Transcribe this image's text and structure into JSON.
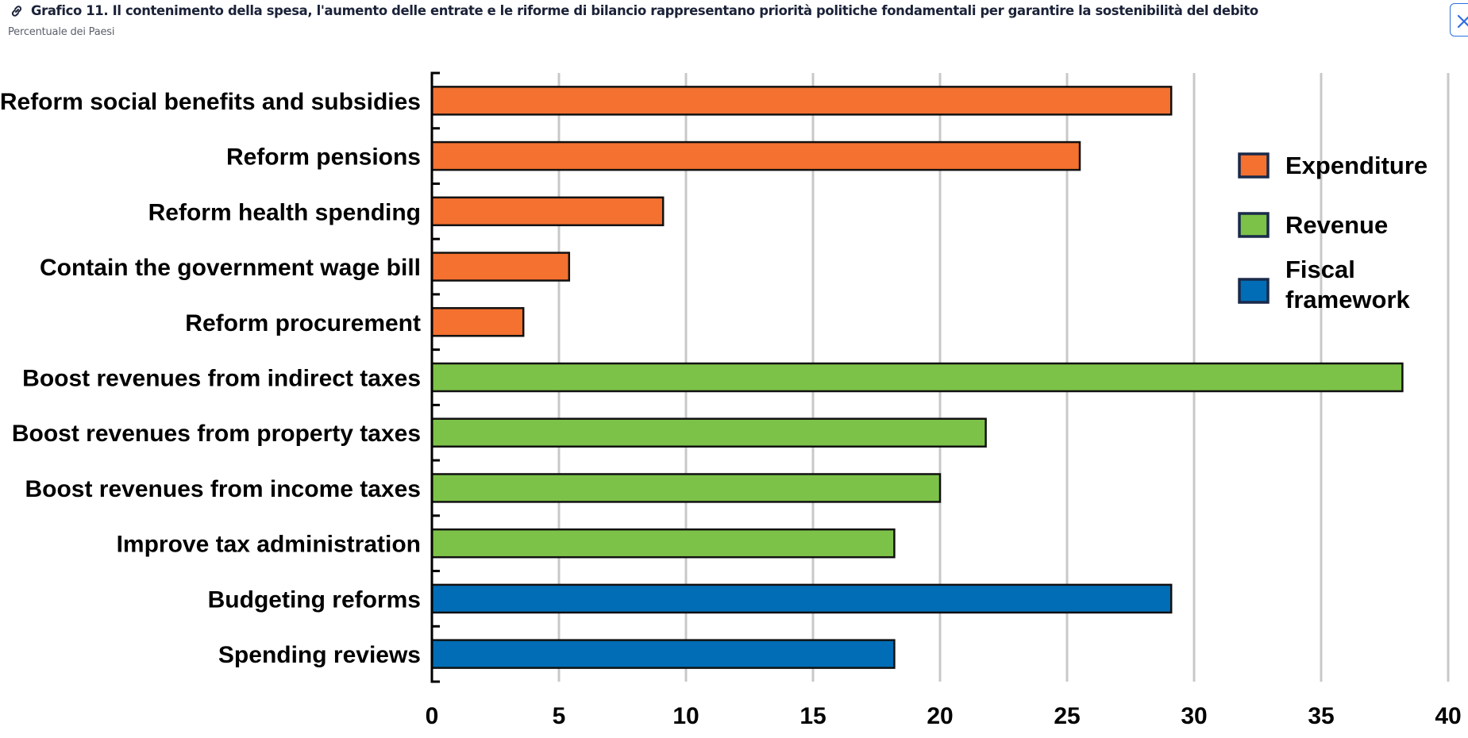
{
  "header": {
    "title": "Grafico 11. Il contenimento della spesa, l'aumento delle entrate e le riforme di bilancio rappresentano priorità politiche fondamentali per garantire la sostenibilità del debito",
    "subtitle": "Percentuale dei Paesi",
    "link_icon": "link-icon",
    "close_icon": "close-icon"
  },
  "colors": {
    "expenditure": "#f47130",
    "revenue": "#7dc248",
    "fiscal_framework": "#006db6",
    "bar_border": "#111111",
    "legend_border": "#1a2a4a",
    "grid": "#c8c8c8",
    "accent": "#2f6ee0"
  },
  "chart_data": {
    "type": "bar",
    "orientation": "horizontal",
    "title": "Grafico 11. Il contenimento della spesa, l'aumento delle entrate e le riforme di bilancio rappresentano priorità politiche fondamentali per garantire la sostenibilità del debito",
    "subtitle": "Percentuale dei Paesi",
    "xlabel": "",
    "ylabel": "",
    "xlim": [
      0,
      40
    ],
    "xticks": [
      0,
      5,
      10,
      15,
      20,
      25,
      30,
      35,
      40
    ],
    "xtick_labels": [
      "0",
      "5",
      "10",
      "15",
      "20",
      "25",
      "30",
      "35",
      "40"
    ],
    "grid": "vertical",
    "legend_position": "top-right",
    "legend": [
      {
        "key": "expenditure",
        "label": "Expenditure"
      },
      {
        "key": "revenue",
        "label": "Revenue"
      },
      {
        "key": "fiscal_framework",
        "label_lines": [
          "Fiscal",
          "framework"
        ],
        "label": "Fiscal framework"
      }
    ],
    "categories": [
      "Reform social benefits and subsidies",
      "Reform pensions",
      "Reform health spending",
      "Contain the government wage bill",
      "Reform procurement",
      "Boost revenues from indirect taxes",
      "Boost revenues from property taxes",
      "Boost revenues from income taxes",
      "Improve tax administration",
      "Budgeting reforms",
      "Spending reviews"
    ],
    "values": [
      29.1,
      25.5,
      9.1,
      5.4,
      3.6,
      38.2,
      21.8,
      20.0,
      18.2,
      29.1,
      18.2
    ],
    "groups": [
      "expenditure",
      "expenditure",
      "expenditure",
      "expenditure",
      "expenditure",
      "revenue",
      "revenue",
      "revenue",
      "revenue",
      "fiscal_framework",
      "fiscal_framework"
    ],
    "series": [
      {
        "name": "Expenditure",
        "categories": [
          "Reform social benefits and subsidies",
          "Reform pensions",
          "Reform health spending",
          "Contain the government wage bill",
          "Reform procurement"
        ],
        "values": [
          29.1,
          25.5,
          9.1,
          5.4,
          3.6
        ]
      },
      {
        "name": "Revenue",
        "categories": [
          "Boost revenues from indirect taxes",
          "Boost revenues from property taxes",
          "Boost revenues from income taxes",
          "Improve tax administration"
        ],
        "values": [
          38.2,
          21.8,
          20.0,
          18.2
        ]
      },
      {
        "name": "Fiscal framework",
        "categories": [
          "Budgeting reforms",
          "Spending reviews"
        ],
        "values": [
          29.1,
          18.2
        ]
      }
    ]
  }
}
